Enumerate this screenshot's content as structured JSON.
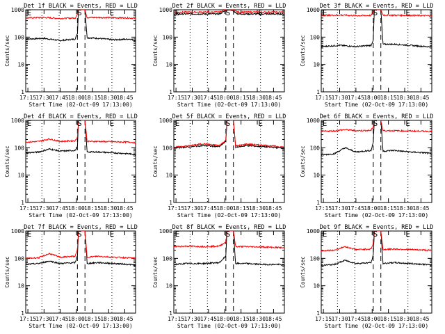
{
  "chart_data": [
    {
      "type": "line",
      "title": "Det 1f  BLACK = Events, RED = LLD",
      "xlabel": "Start Time (02-Oct-09 17:13:00)",
      "ylabel": "Counts/sec",
      "y_scale": "log",
      "ylim": [
        1,
        1000
      ],
      "y_tick_labels": [
        "1",
        "10",
        "100",
        "1000"
      ],
      "x_tick_labels": [
        "17:15",
        "17:30",
        "17:45",
        "18:00",
        "18:15",
        "18:30",
        "18:45"
      ],
      "xlim": [
        "17:13",
        "18:55"
      ],
      "markers": {
        "S": "18:03",
        "E": "18:33"
      },
      "dashed_lines": [
        "18:01",
        "18:08"
      ],
      "dotted_lines": [
        "17:28",
        "17:44",
        "18:33"
      ],
      "series": [
        {
          "name": "Events",
          "color": "#000000",
          "x": [
            "17:13",
            "17:30",
            "17:45",
            "17:59",
            "18:01",
            "18:02",
            "18:08",
            "18:10",
            "18:20",
            "18:35",
            "18:50",
            "18:55"
          ],
          "y": [
            85,
            90,
            75,
            85,
            140,
            1000,
            1000,
            95,
            90,
            80,
            85,
            75
          ]
        },
        {
          "name": "LLD",
          "color": "#ff0000",
          "x": [
            "17:13",
            "17:30",
            "17:45",
            "17:59",
            "18:01",
            "18:02",
            "18:08",
            "18:10",
            "18:20",
            "18:35",
            "18:50",
            "18:55"
          ],
          "y": [
            500,
            520,
            480,
            500,
            700,
            1000,
            1000,
            520,
            520,
            510,
            500,
            480
          ]
        }
      ]
    },
    {
      "type": "line",
      "title": "Det 2f  BLACK = Events, RED = LLD",
      "xlabel": "Start Time (02-Oct-09 17:13:00)",
      "ylabel": "Counts/sec",
      "y_scale": "log",
      "ylim": [
        1,
        1000
      ],
      "y_tick_labels": [
        "1",
        "10",
        "100",
        "1000"
      ],
      "x_tick_labels": [
        "17:15",
        "17:30",
        "17:45",
        "18:00",
        "18:15",
        "18:30",
        "18:45"
      ],
      "xlim": [
        "17:13",
        "18:55"
      ],
      "markers": {
        "S": "18:03",
        "E": "18:33"
      },
      "dashed_lines": [
        "18:01",
        "18:08"
      ],
      "dotted_lines": [
        "17:28",
        "17:44",
        "18:33"
      ],
      "series": [
        {
          "name": "Events",
          "color": "#000000",
          "x": [
            "17:13",
            "17:40",
            "17:55",
            "18:00",
            "18:04",
            "18:08",
            "18:12",
            "18:25",
            "18:40",
            "18:55"
          ],
          "y": [
            700,
            700,
            700,
            900,
            1000,
            900,
            700,
            700,
            700,
            700
          ]
        },
        {
          "name": "LLD",
          "color": "#ff0000",
          "x": [
            "17:13",
            "17:40",
            "17:55",
            "18:00",
            "18:04",
            "18:08",
            "18:12",
            "18:25",
            "18:40",
            "18:55"
          ],
          "y": [
            820,
            820,
            820,
            1000,
            1000,
            1000,
            820,
            820,
            820,
            820
          ]
        }
      ]
    },
    {
      "type": "line",
      "title": "Det 3f  BLACK = Events, RED = LLD",
      "xlabel": "Start Time (02-Oct-09 17:13:00)",
      "ylabel": "Counts/sec",
      "y_scale": "log",
      "ylim": [
        1,
        1000
      ],
      "y_tick_labels": [
        "1",
        "10",
        "100",
        "1000"
      ],
      "x_tick_labels": [
        "17:15",
        "17:30",
        "17:45",
        "18:00",
        "18:15",
        "18:30",
        "18:45"
      ],
      "xlim": [
        "17:13",
        "18:55"
      ],
      "markers": {
        "S": "18:03",
        "E": "18:33"
      },
      "dashed_lines": [
        "18:01",
        "18:08"
      ],
      "dotted_lines": [
        "17:28",
        "17:44",
        "18:33"
      ],
      "series": [
        {
          "name": "Events",
          "color": "#000000",
          "x": [
            "17:13",
            "17:30",
            "17:45",
            "17:59",
            "18:01",
            "18:02",
            "18:08",
            "18:10",
            "18:20",
            "18:35",
            "18:50",
            "18:55"
          ],
          "y": [
            45,
            50,
            45,
            50,
            80,
            1000,
            1000,
            55,
            55,
            50,
            45,
            45
          ]
        },
        {
          "name": "LLD",
          "color": "#ff0000",
          "x": [
            "17:13",
            "17:30",
            "17:45",
            "17:59",
            "18:01",
            "18:02",
            "18:08",
            "18:10",
            "18:20",
            "18:35",
            "18:50",
            "18:55"
          ],
          "y": [
            620,
            640,
            610,
            620,
            800,
            1000,
            1000,
            640,
            630,
            620,
            610,
            600
          ]
        }
      ]
    },
    {
      "type": "line",
      "title": "Det 4f  BLACK = Events, RED = LLD",
      "xlabel": "Start Time (02-Oct-09 17:13:00)",
      "ylabel": "Counts/sec",
      "y_scale": "log",
      "ylim": [
        1,
        1000
      ],
      "y_tick_labels": [
        "1",
        "10",
        "100",
        "1000"
      ],
      "x_tick_labels": [
        "17:15",
        "17:30",
        "17:45",
        "18:00",
        "18:15",
        "18:30",
        "18:45"
      ],
      "xlim": [
        "17:13",
        "18:55"
      ],
      "markers": {
        "S": "18:03",
        "E": "18:33"
      },
      "dashed_lines": [
        "18:01",
        "18:08"
      ],
      "dotted_lines": [
        "17:28",
        "17:44",
        "18:33"
      ],
      "series": [
        {
          "name": "Events",
          "color": "#000000",
          "x": [
            "17:13",
            "17:25",
            "17:35",
            "17:45",
            "17:59",
            "18:01",
            "18:02",
            "18:08",
            "18:10",
            "18:20",
            "18:35",
            "18:50",
            "18:55"
          ],
          "y": [
            65,
            70,
            90,
            75,
            80,
            110,
            1000,
            1000,
            70,
            70,
            65,
            60,
            55
          ]
        },
        {
          "name": "LLD",
          "color": "#ff0000",
          "x": [
            "17:13",
            "17:25",
            "17:35",
            "17:45",
            "17:59",
            "18:01",
            "18:02",
            "18:08",
            "18:10",
            "18:20",
            "18:35",
            "18:50",
            "18:55"
          ],
          "y": [
            160,
            170,
            210,
            170,
            180,
            250,
            1000,
            1000,
            170,
            170,
            165,
            160,
            150
          ]
        }
      ]
    },
    {
      "type": "line",
      "title": "Det 5f  BLACK = Events, RED = LLD",
      "xlabel": "Start Time (02-Oct-09 17:13:00)",
      "ylabel": "Counts/sec",
      "y_scale": "log",
      "ylim": [
        1,
        1000
      ],
      "y_tick_labels": [
        "1",
        "10",
        "100",
        "1000"
      ],
      "x_tick_labels": [
        "17:15",
        "17:30",
        "17:45",
        "18:00",
        "18:15",
        "18:30",
        "18:45"
      ],
      "xlim": [
        "17:13",
        "18:55"
      ],
      "markers": {
        "S": "18:03",
        "E": "18:33"
      },
      "dashed_lines": [
        "18:01",
        "18:08"
      ],
      "dotted_lines": [
        "17:28",
        "17:44",
        "18:33"
      ],
      "series": [
        {
          "name": "Events",
          "color": "#000000",
          "x": [
            "17:13",
            "17:25",
            "17:40",
            "17:55",
            "18:01",
            "18:02",
            "18:08",
            "18:10",
            "18:20",
            "18:35",
            "18:50",
            "18:55"
          ],
          "y": [
            100,
            105,
            120,
            110,
            170,
            1000,
            1000,
            105,
            120,
            110,
            100,
            95
          ]
        },
        {
          "name": "LLD",
          "color": "#ff0000",
          "x": [
            "17:13",
            "17:25",
            "17:40",
            "17:55",
            "18:01",
            "18:02",
            "18:08",
            "18:10",
            "18:20",
            "18:35",
            "18:50",
            "18:55"
          ],
          "y": [
            105,
            115,
            140,
            120,
            190,
            1000,
            1000,
            115,
            135,
            125,
            110,
            105
          ]
        }
      ]
    },
    {
      "type": "line",
      "title": "Det 6f  BLACK = Events, RED = LLD",
      "xlabel": "Start Time (02-Oct-09 17:13:00)",
      "ylabel": "Counts/sec",
      "y_scale": "log",
      "ylim": [
        1,
        1000
      ],
      "y_tick_labels": [
        "1",
        "10",
        "100",
        "1000"
      ],
      "x_tick_labels": [
        "17:15",
        "17:30",
        "17:45",
        "18:00",
        "18:15",
        "18:30",
        "18:45"
      ],
      "xlim": [
        "17:13",
        "18:55"
      ],
      "markers": {
        "S": "18:03",
        "E": "18:33"
      },
      "dashed_lines": [
        "18:01",
        "18:08"
      ],
      "dotted_lines": [
        "17:28",
        "17:44",
        "18:33"
      ],
      "series": [
        {
          "name": "Events",
          "color": "#000000",
          "x": [
            "17:13",
            "17:25",
            "17:35",
            "17:45",
            "17:59",
            "18:01",
            "18:02",
            "18:08",
            "18:10",
            "18:20",
            "18:35",
            "18:50",
            "18:55"
          ],
          "y": [
            55,
            60,
            100,
            70,
            80,
            160,
            1000,
            1000,
            75,
            80,
            70,
            65,
            60
          ]
        },
        {
          "name": "LLD",
          "color": "#ff0000",
          "x": [
            "17:13",
            "17:25",
            "17:35",
            "17:45",
            "17:59",
            "18:01",
            "18:02",
            "18:08",
            "18:10",
            "18:20",
            "18:35",
            "18:50",
            "18:55"
          ],
          "y": [
            400,
            410,
            460,
            420,
            430,
            600,
            1000,
            1000,
            420,
            420,
            410,
            400,
            390
          ]
        }
      ]
    },
    {
      "type": "line",
      "title": "Det 7f  BLACK = Events, RED = LLD",
      "xlabel": "Start Time (02-Oct-09 17:13:00)",
      "ylabel": "Counts/sec",
      "y_scale": "log",
      "ylim": [
        1,
        1000
      ],
      "y_tick_labels": [
        "1",
        "10",
        "100",
        "1000"
      ],
      "x_tick_labels": [
        "17:15",
        "17:30",
        "17:45",
        "18:00",
        "18:15",
        "18:30",
        "18:45"
      ],
      "xlim": [
        "17:13",
        "18:55"
      ],
      "markers": {
        "S": "18:03",
        "E": "18:33"
      },
      "dashed_lines": [
        "18:01",
        "18:08"
      ],
      "dotted_lines": [
        "17:28",
        "17:44",
        "18:33"
      ],
      "series": [
        {
          "name": "Events",
          "color": "#000000",
          "x": [
            "17:13",
            "17:25",
            "17:35",
            "17:45",
            "17:59",
            "18:01",
            "18:02",
            "18:08",
            "18:10",
            "18:20",
            "18:35",
            "18:50",
            "18:55"
          ],
          "y": [
            60,
            65,
            80,
            65,
            70,
            130,
            1000,
            1000,
            65,
            70,
            65,
            60,
            55
          ]
        },
        {
          "name": "LLD",
          "color": "#ff0000",
          "x": [
            "17:13",
            "17:25",
            "17:35",
            "17:45",
            "17:59",
            "18:01",
            "18:02",
            "18:08",
            "18:10",
            "18:20",
            "18:35",
            "18:50",
            "18:55"
          ],
          "y": [
            100,
            105,
            150,
            110,
            120,
            220,
            1000,
            1000,
            110,
            120,
            110,
            105,
            100
          ]
        }
      ]
    },
    {
      "type": "line",
      "title": "Det 8f  BLACK = Events, RED = LLD",
      "xlabel": "Start Time (02-Oct-09 17:13:00)",
      "ylabel": "Counts/sec",
      "y_scale": "log",
      "ylim": [
        1,
        1000
      ],
      "y_tick_labels": [
        "1",
        "10",
        "100",
        "1000"
      ],
      "x_tick_labels": [
        "17:15",
        "17:30",
        "17:45",
        "18:00",
        "18:15",
        "18:30",
        "18:45"
      ],
      "xlim": [
        "17:13",
        "18:55"
      ],
      "markers": {
        "S": "18:03",
        "E": "18:33"
      },
      "dashed_lines": [
        "18:01",
        "18:08"
      ],
      "dotted_lines": [
        "17:28",
        "17:44",
        "18:33"
      ],
      "series": [
        {
          "name": "Events",
          "color": "#000000",
          "x": [
            "17:13",
            "17:25",
            "17:40",
            "17:55",
            "18:01",
            "18:02",
            "18:08",
            "18:10",
            "18:20",
            "18:35",
            "18:50",
            "18:55"
          ],
          "y": [
            60,
            65,
            65,
            70,
            120,
            1000,
            1000,
            65,
            65,
            60,
            60,
            55
          ]
        },
        {
          "name": "LLD",
          "color": "#ff0000",
          "x": [
            "17:13",
            "17:25",
            "17:40",
            "17:55",
            "18:01",
            "18:02",
            "18:08",
            "18:10",
            "18:20",
            "18:35",
            "18:50",
            "18:55"
          ],
          "y": [
            270,
            280,
            270,
            280,
            400,
            1000,
            1000,
            270,
            270,
            260,
            250,
            240
          ]
        }
      ]
    },
    {
      "type": "line",
      "title": "Det 9f  BLACK = Events, RED = LLD",
      "xlabel": "Start Time (02-Oct-09 17:13:00)",
      "ylabel": "Counts/sec",
      "y_scale": "log",
      "ylim": [
        1,
        1000
      ],
      "y_tick_labels": [
        "1",
        "10",
        "100",
        "1000"
      ],
      "x_tick_labels": [
        "17:15",
        "17:30",
        "17:45",
        "18:00",
        "18:15",
        "18:30",
        "18:45"
      ],
      "xlim": [
        "17:13",
        "18:55"
      ],
      "markers": {
        "S": "18:03",
        "E": "18:33"
      },
      "dashed_lines": [
        "18:01",
        "18:08"
      ],
      "dotted_lines": [
        "17:28",
        "17:44",
        "18:33"
      ],
      "series": [
        {
          "name": "Events",
          "color": "#000000",
          "x": [
            "17:13",
            "17:25",
            "17:35",
            "17:45",
            "17:59",
            "18:01",
            "18:02",
            "18:08",
            "18:10",
            "18:20",
            "18:35",
            "18:50",
            "18:55"
          ],
          "y": [
            55,
            60,
            85,
            65,
            70,
            130,
            1000,
            1000,
            65,
            70,
            65,
            60,
            55
          ]
        },
        {
          "name": "LLD",
          "color": "#ff0000",
          "x": [
            "17:13",
            "17:25",
            "17:35",
            "17:45",
            "17:59",
            "18:01",
            "18:02",
            "18:08",
            "18:10",
            "18:20",
            "18:35",
            "18:50",
            "18:55"
          ],
          "y": [
            190,
            200,
            270,
            210,
            220,
            350,
            1000,
            1000,
            210,
            220,
            210,
            200,
            195
          ]
        }
      ]
    }
  ]
}
